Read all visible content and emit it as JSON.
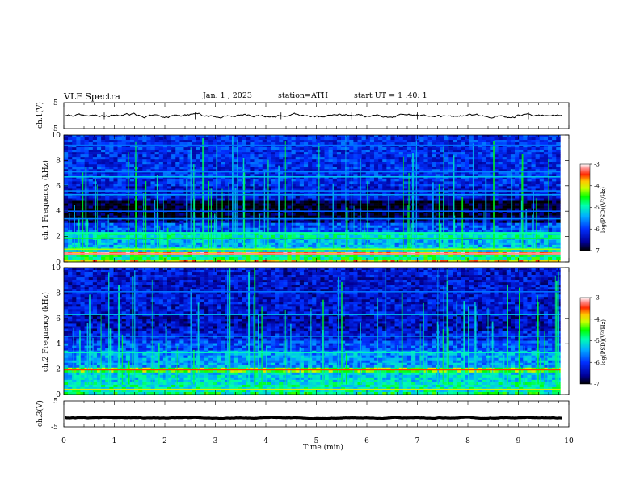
{
  "header": {
    "title": "VLF  Spectra",
    "date": "Jan.  1  , 2023",
    "station": "station=ATH",
    "start": "start  UT  =   1 :40: 1"
  },
  "chart_data": [
    {
      "type": "line",
      "panel": "ch1-waveform",
      "ylabel": "ch.1(V)",
      "ylim": [
        -5,
        5
      ],
      "yticks": [
        "5",
        "-5"
      ],
      "xlim": [
        0,
        10
      ],
      "series": [
        {
          "level": 0,
          "amplitude": 0.6
        }
      ]
    },
    {
      "type": "heatmap",
      "panel": "ch1-spectrogram",
      "ylabel": "ch.1  Frequency  (kHz)",
      "ylim": [
        0,
        10
      ],
      "yticks": [
        "0",
        "2",
        "4",
        "6",
        "8",
        "10"
      ],
      "xlim": [
        0,
        10
      ],
      "data_end_min": 9.83,
      "colorbar": {
        "label": "log(PSD)(V²/Hz)",
        "range": [
          -7,
          -3
        ],
        "ticks": [
          "-3",
          "-4",
          "-5",
          "-6",
          "-7"
        ]
      },
      "background_log_psd": [
        {
          "f": [
            0,
            0.2
          ],
          "v": -3.9
        },
        {
          "f": [
            0.2,
            0.5
          ],
          "v": -4.8
        },
        {
          "f": [
            0.5,
            0.75
          ],
          "v": -3.5
        },
        {
          "f": [
            0.75,
            1.2
          ],
          "v": -5.1
        },
        {
          "f": [
            1.2,
            2.0
          ],
          "v": -5.4
        },
        {
          "f": [
            2.0,
            2.4
          ],
          "v": -5.0
        },
        {
          "f": [
            2.4,
            3.0
          ],
          "v": -5.9
        },
        {
          "f": [
            3.0,
            3.5
          ],
          "v": -6.6
        },
        {
          "f": [
            3.5,
            4.8
          ],
          "v": -6.95
        },
        {
          "f": [
            4.8,
            6.0
          ],
          "v": -6.3
        },
        {
          "f": [
            6.0,
            10.0
          ],
          "v": -6.1
        }
      ],
      "lines": [
        {
          "f": 0.65,
          "v": -3.2
        },
        {
          "f": 1.0,
          "v": -4.2
        },
        {
          "f": 1.85,
          "v": -4.6
        },
        {
          "f": 2.3,
          "v": -4.9
        },
        {
          "f": 3.4,
          "v": -5.6
        },
        {
          "f": 4.0,
          "v": -5.8
        },
        {
          "f": 5.3,
          "v": -5.5
        },
        {
          "f": 5.6,
          "v": -5.6
        },
        {
          "f": 6.7,
          "v": -5.3
        },
        {
          "f": 7.1,
          "v": -5.6
        },
        {
          "f": 9.2,
          "v": -5.7
        }
      ]
    },
    {
      "type": "heatmap",
      "panel": "ch2-spectrogram",
      "ylabel": "ch.2  Frequency  (kHz)",
      "ylim": [
        0,
        10
      ],
      "yticks": [
        "0",
        "2",
        "4",
        "6",
        "8",
        "10"
      ],
      "xlim": [
        0,
        10
      ],
      "data_end_min": 9.83,
      "colorbar": {
        "label": "log(PSD)(V²/Hz)",
        "range": [
          -7,
          -3
        ],
        "ticks": [
          "-3",
          "-4",
          "-5",
          "-6",
          "-7"
        ]
      },
      "background_log_psd": [
        {
          "f": [
            0,
            0.25
          ],
          "v": -4.8
        },
        {
          "f": [
            0.25,
            1.0
          ],
          "v": -5.0
        },
        {
          "f": [
            1.0,
            1.7
          ],
          "v": -5.2
        },
        {
          "f": [
            1.7,
            2.1
          ],
          "v": -4.4
        },
        {
          "f": [
            2.1,
            3.5
          ],
          "v": -5.5
        },
        {
          "f": [
            3.5,
            4.3
          ],
          "v": -5.9
        },
        {
          "f": [
            4.3,
            5.0
          ],
          "v": -6.2
        },
        {
          "f": [
            5.0,
            6.3
          ],
          "v": -6.4
        },
        {
          "f": [
            6.3,
            10.0
          ],
          "v": -6.3
        }
      ],
      "lines": [
        {
          "f": 0.4,
          "v": -4.0
        },
        {
          "f": 1.95,
          "v": -3.5
        },
        {
          "f": 3.3,
          "v": -5.0
        },
        {
          "f": 4.6,
          "v": -5.5
        },
        {
          "f": 6.3,
          "v": -5.3
        },
        {
          "f": 8.1,
          "v": -5.7
        }
      ]
    },
    {
      "type": "line",
      "panel": "ch3-waveform",
      "ylabel": "ch.3(V)",
      "ylim": [
        -5,
        5
      ],
      "yticks": [
        "5",
        "-5"
      ],
      "xlim": [
        0,
        10
      ],
      "series": [
        {
          "level": -1.5,
          "amplitude": 0.15
        }
      ]
    }
  ],
  "x_axis": {
    "label": "Time  (min)",
    "ticks": [
      "0",
      "1",
      "2",
      "3",
      "4",
      "5",
      "6",
      "7",
      "8",
      "9",
      "10"
    ]
  }
}
